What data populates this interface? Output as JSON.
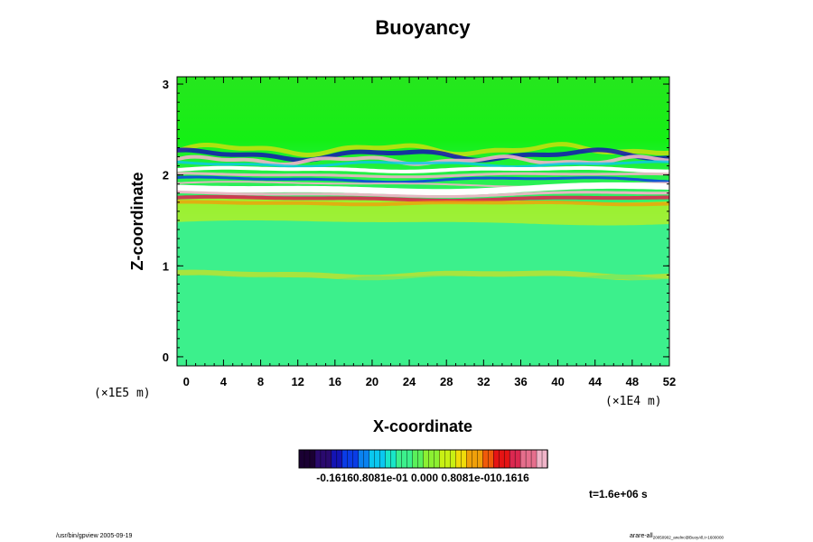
{
  "chart_data": {
    "type": "heatmap",
    "title": "Buoyancy",
    "xlabel": "X-coordinate",
    "ylabel": "Z-coordinate",
    "x_unit": "(×1E4  m)",
    "y_unit": "(×1E5  m)",
    "xlim": [
      -1,
      52
    ],
    "ylim": [
      -0.1,
      3.08
    ],
    "x_ticks": [
      0,
      4,
      8,
      12,
      16,
      20,
      24,
      28,
      32,
      36,
      40,
      44,
      48,
      52
    ],
    "x_tick_labels": [
      "0",
      "4",
      "8",
      "12",
      "16",
      "20",
      "24",
      "28",
      "32",
      "36",
      "40",
      "44",
      "48",
      "52"
    ],
    "y_ticks": [
      0,
      1,
      2,
      3
    ],
    "y_tick_labels": [
      "0",
      "1",
      "2",
      "3"
    ],
    "colorbar": {
      "min": -0.1616,
      "max": 0.1616,
      "tick_text": "-0.16160.8081e-01 0.000 0.8081e-010.1616",
      "colors": [
        "#1a0033",
        "#2a0a6e",
        "#1414b4",
        "#0a3ce6",
        "#0a82f0",
        "#0ac8f0",
        "#19e6c8",
        "#3cf08c",
        "#5af05a",
        "#8cf032",
        "#c8f014",
        "#f0dc0a",
        "#f0a00a",
        "#f05a0a",
        "#e61414",
        "#dc2850",
        "#e66e8c",
        "#f0b4c8"
      ]
    },
    "field_description_bands": [
      {
        "z": 2.85,
        "value": 0.0
      },
      {
        "z": 2.2,
        "value": -0.08
      },
      {
        "z": 2.1,
        "value": 0.16
      },
      {
        "z": 1.95,
        "value": -0.12
      },
      {
        "z": 1.72,
        "value": 0.14
      },
      {
        "z": 1.55,
        "value": 0.02
      },
      {
        "z": 0.9,
        "value": 0.01
      },
      {
        "z": 0.3,
        "value": -0.005
      }
    ],
    "time_label": "t=1.6e+06 s"
  },
  "footer": {
    "left": "/usr/bin/gpview 2005-09-19",
    "right": "arare-all",
    "right_sub": "20050902_anelnc@BuoyAll,t=1600000"
  }
}
